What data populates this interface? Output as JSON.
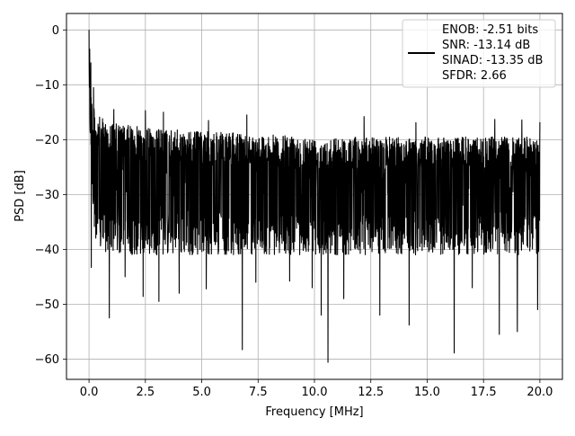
{
  "chart_data": {
    "type": "line",
    "title": "",
    "xlabel": "Frequency [MHz]",
    "ylabel": "PSD [dB]",
    "xlim": [
      -1.0,
      21.0
    ],
    "ylim": [
      -63.7,
      3.0
    ],
    "xticks": [
      0.0,
      2.5,
      5.0,
      7.5,
      10.0,
      12.5,
      15.0,
      17.5,
      20.0
    ],
    "xtick_labels": [
      "0.0",
      "2.5",
      "5.0",
      "7.5",
      "10.0",
      "12.5",
      "15.0",
      "17.5",
      "20.0"
    ],
    "yticks": [
      0,
      -10,
      -20,
      -30,
      -40,
      -50,
      -60
    ],
    "ytick_labels": [
      "0",
      "−10",
      "−20",
      "−30",
      "−40",
      "−50",
      "−60"
    ],
    "grid": true,
    "legend_position": "top-right",
    "legend_lines": [
      "ENOB: -2.51 bits",
      "SNR: -13.14 dB",
      "SINAD: -13.35 dB",
      "SFDR: 2.66"
    ],
    "series_color": "#000000",
    "series": [
      {
        "x_start": 0.0,
        "x_end": 20.0,
        "envelope_x": [
          0.0,
          0.05,
          0.15,
          0.3,
          1.0,
          2.0,
          3.0,
          5.0,
          7.5,
          10.0,
          12.5,
          15.0,
          17.5,
          20.0
        ],
        "envelope_upper": [
          0.0,
          -8.0,
          -13.0,
          -15.5,
          -17.0,
          -17.5,
          -18.0,
          -18.5,
          -19.0,
          -19.5,
          -19.5,
          -19.5,
          -19.5,
          -19.5
        ],
        "envelope_lower": [
          -13.0,
          -20.0,
          -30.0,
          -40.0,
          -41.0,
          -41.0,
          -41.0,
          -41.0,
          -41.0,
          -41.0,
          -41.0,
          -41.0,
          -41.0,
          -41.0
        ],
        "peaks": [
          [
            0.0,
            0.0
          ],
          [
            0.03,
            -3.5
          ],
          [
            0.08,
            -6.0
          ],
          [
            0.2,
            -10.5
          ],
          [
            1.1,
            -14.5
          ],
          [
            2.5,
            -14.7
          ],
          [
            3.3,
            -15.0
          ],
          [
            5.3,
            -16.5
          ],
          [
            7.0,
            -15.5
          ],
          [
            9.9,
            -16.8
          ],
          [
            12.2,
            -15.8
          ],
          [
            14.5,
            -16.9
          ],
          [
            18.0,
            -16.3
          ],
          [
            19.2,
            -16.4
          ],
          [
            20.0,
            -16.8
          ]
        ],
        "dips": [
          [
            0.1,
            -43.3
          ],
          [
            0.9,
            -52.5
          ],
          [
            1.6,
            -45.0
          ],
          [
            2.4,
            -48.6
          ],
          [
            3.1,
            -49.5
          ],
          [
            4.0,
            -48.0
          ],
          [
            5.2,
            -47.2
          ],
          [
            6.8,
            -58.3
          ],
          [
            7.4,
            -46.0
          ],
          [
            8.9,
            -45.8
          ],
          [
            9.9,
            -47.0
          ],
          [
            10.3,
            -52.0
          ],
          [
            10.6,
            -60.6
          ],
          [
            11.3,
            -49.0
          ],
          [
            12.9,
            -52.0
          ],
          [
            14.2,
            -53.8
          ],
          [
            16.2,
            -58.9
          ],
          [
            17.0,
            -47.0
          ],
          [
            18.2,
            -55.5
          ],
          [
            19.0,
            -55.0
          ],
          [
            19.9,
            -51.0
          ]
        ]
      }
    ]
  }
}
